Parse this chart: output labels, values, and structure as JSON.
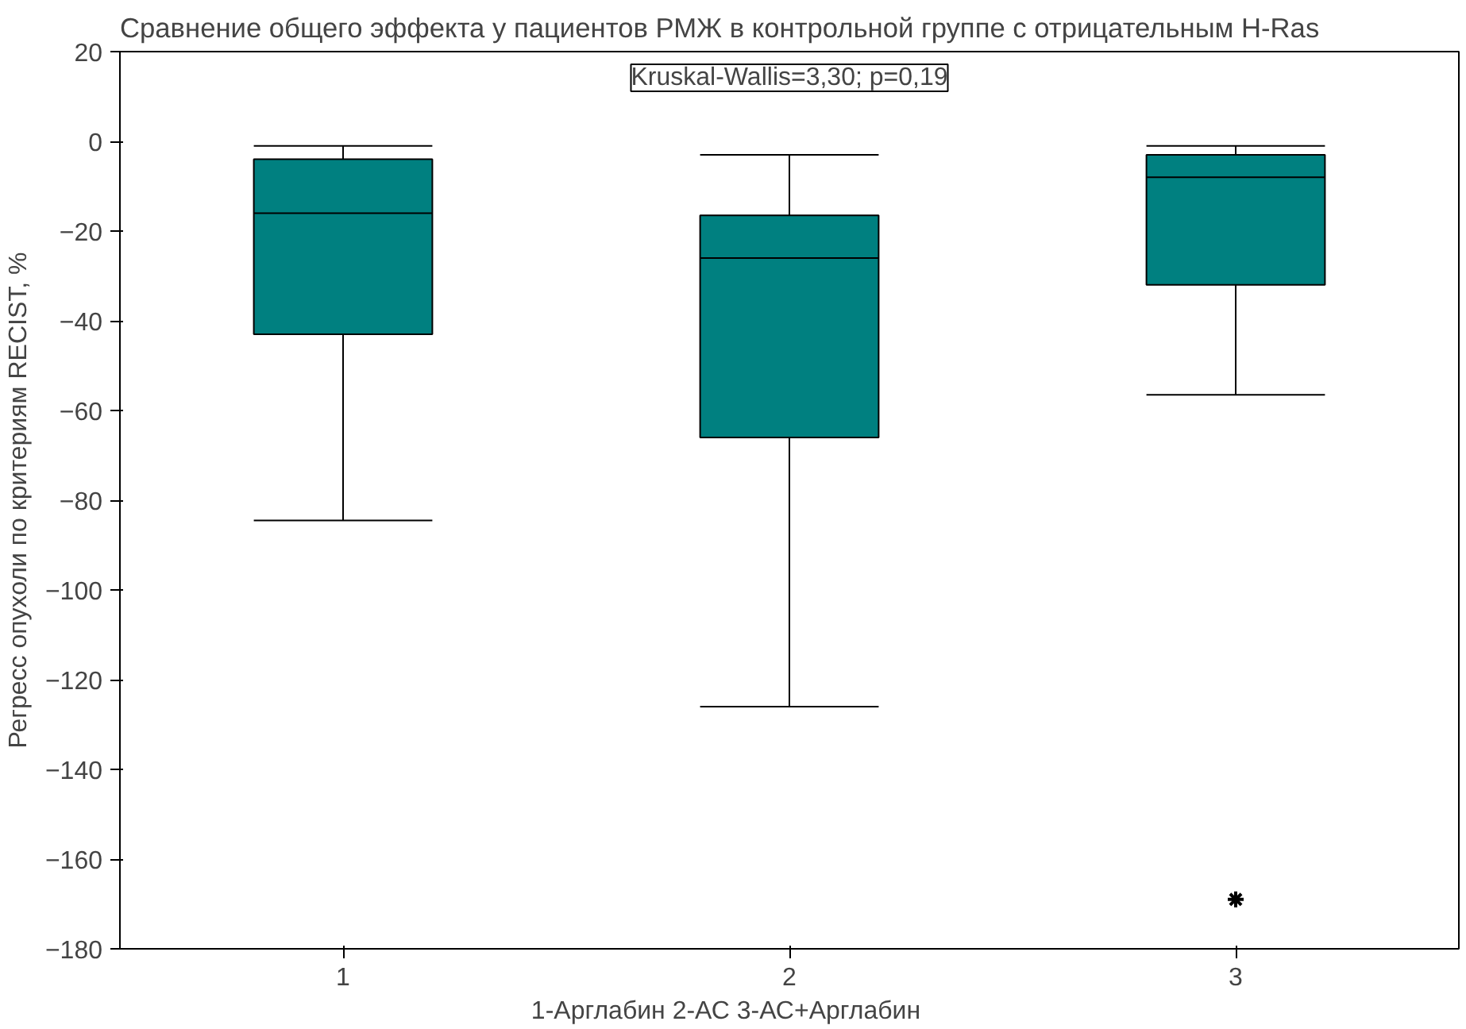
{
  "chart_data": {
    "type": "box",
    "title": "Сравнение общего эффекта у пациентов РМЖ в контрольной группе с отрицательным H-Ras",
    "xlabel": "1-Арглабин          2-АС          3-АС+Арглабин",
    "ylabel": "Регресс опухоли по критериям RECIST, %",
    "annotations": [
      "Kruskal-Wallis=3,30; p=0,19"
    ],
    "categories": [
      "1",
      "2",
      "3"
    ],
    "color": "#008080",
    "boxes": [
      {
        "low": -84.5,
        "q1": -43,
        "median": -16,
        "q3": -4,
        "high": -1
      },
      {
        "low": -126,
        "q1": -66,
        "median": -26,
        "q3": -16.5,
        "high": -3
      },
      {
        "low": -56.5,
        "q1": -32,
        "median": -8,
        "q3": -3,
        "high": -1,
        "outliers": [
          -169
        ]
      }
    ],
    "ylim": [
      -180,
      20
    ],
    "yticks": [
      -180,
      -160,
      -140,
      -120,
      -100,
      -80,
      -60,
      -40,
      -20,
      0,
      20
    ],
    "grid": false
  }
}
